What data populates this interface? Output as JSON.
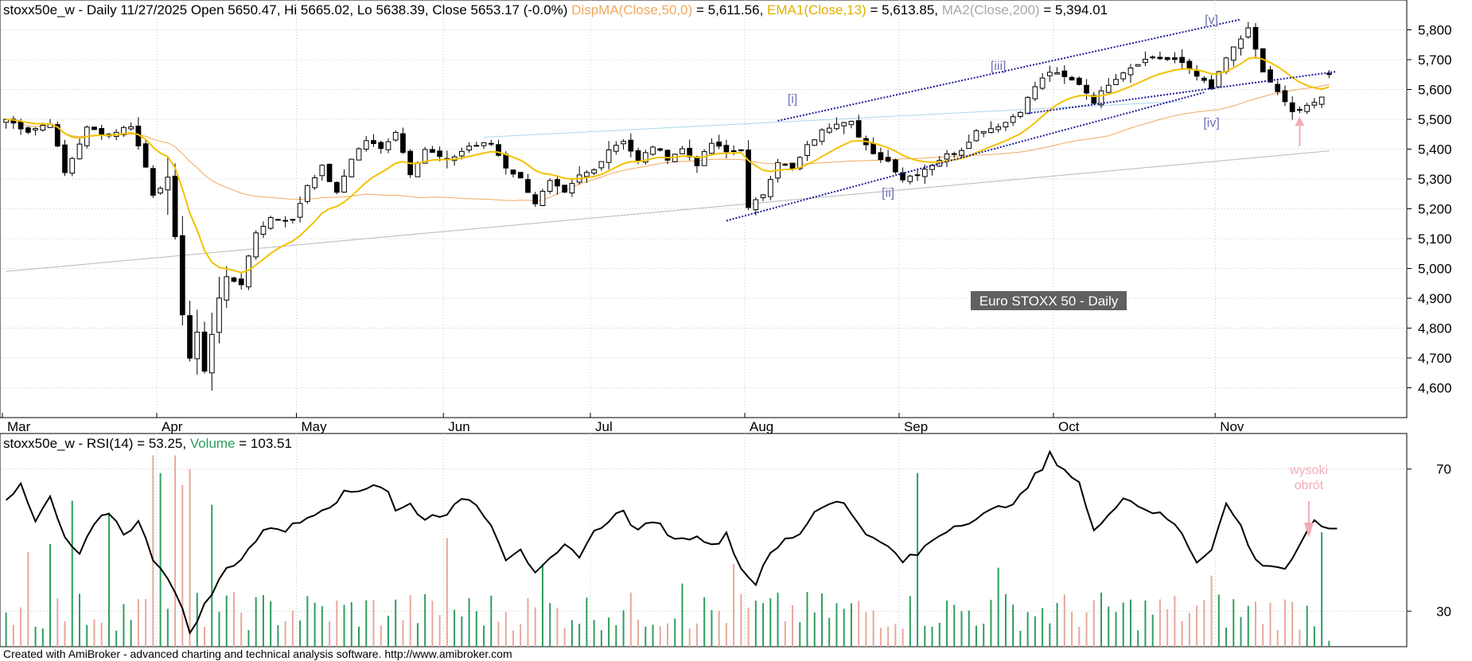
{
  "header": {
    "main_prefix": "stoxx50e_w - Daily 11/27/2025 Open 5650.47, Hi 5665.02, Lo 5638.39, Close 5653.17 (-0.0%)",
    "dispma_label": "DispMA(Close,50,0)",
    "dispma_value": " = 5,611.56,",
    "ema_label": "EMA1(Close,13)",
    "ema_value": " = 5,613.85,",
    "ma200_label": "MA2(Close,200)",
    "ma200_value": " = 5,394.01",
    "rsi_prefix": "stoxx50e_w - RSI(14) = 53.25,",
    "volume_label": "Volume",
    "volume_value": " = 103.51"
  },
  "footer": {
    "credit": "Created with AmiBroker - advanced charting and technical analysis software. http://www.amibroker.com"
  },
  "colors": {
    "dispma": "#f0a860",
    "ema": "#f2c200",
    "ma200": "#b8b8b8",
    "volume_up": "#2e9e5b",
    "volume_down": "#e8a898",
    "channel": "#1a1a9a",
    "wave_label": "#7070b8",
    "annotation": "#f4aab8",
    "rsi": "#000000"
  },
  "chart_data": [
    {
      "type": "candlestick",
      "title": "Euro STOXX 50 - Daily",
      "ylim": [
        4500,
        5900
      ],
      "y_ticks": [
        "5,800",
        "5,700",
        "5,600",
        "5,500",
        "5,400",
        "5,300",
        "5,200",
        "5,100",
        "5,000",
        "4,900",
        "4,800",
        "4,700",
        "4,600"
      ],
      "y_tick_values": [
        5800,
        5700,
        5600,
        5500,
        5400,
        5300,
        5200,
        5100,
        5000,
        4900,
        4800,
        4700,
        4600
      ],
      "months": [
        {
          "label": "Mar",
          "bar": 0
        },
        {
          "label": "Apr",
          "bar": 21
        },
        {
          "label": "May",
          "bar": 40
        },
        {
          "label": "Jun",
          "bar": 60
        },
        {
          "label": "Jul",
          "bar": 80
        },
        {
          "label": "Aug",
          "bar": 101
        },
        {
          "label": "Sep",
          "bar": 122
        },
        {
          "label": "Oct",
          "bar": 143
        },
        {
          "label": "Nov",
          "bar": 165
        }
      ],
      "close_anchors": [
        [
          0,
          5500
        ],
        [
          3,
          5460
        ],
        [
          6,
          5490
        ],
        [
          8,
          5320
        ],
        [
          11,
          5470
        ],
        [
          14,
          5450
        ],
        [
          17,
          5480
        ],
        [
          19,
          5340
        ],
        [
          20,
          5250
        ],
        [
          22,
          5300
        ],
        [
          23,
          5100
        ],
        [
          24,
          4850
        ],
        [
          25,
          4700
        ],
        [
          26,
          4780
        ],
        [
          27,
          4660
        ],
        [
          28,
          4780
        ],
        [
          29,
          4900
        ],
        [
          30,
          4970
        ],
        [
          32,
          4950
        ],
        [
          34,
          5120
        ],
        [
          36,
          5170
        ],
        [
          39,
          5160
        ],
        [
          41,
          5280
        ],
        [
          43,
          5340
        ],
        [
          45,
          5250
        ],
        [
          47,
          5370
        ],
        [
          49,
          5430
        ],
        [
          51,
          5400
        ],
        [
          53,
          5460
        ],
        [
          55,
          5320
        ],
        [
          57,
          5400
        ],
        [
          60,
          5360
        ],
        [
          63,
          5410
        ],
        [
          66,
          5420
        ],
        [
          68,
          5340
        ],
        [
          70,
          5300
        ],
        [
          72,
          5220
        ],
        [
          74,
          5290
        ],
        [
          76,
          5250
        ],
        [
          78,
          5310
        ],
        [
          80,
          5330
        ],
        [
          82,
          5400
        ],
        [
          84,
          5430
        ],
        [
          86,
          5360
        ],
        [
          88,
          5410
        ],
        [
          90,
          5370
        ],
        [
          92,
          5400
        ],
        [
          94,
          5350
        ],
        [
          96,
          5420
        ],
        [
          98,
          5390
        ],
        [
          100,
          5400
        ],
        [
          101,
          5200
        ],
        [
          103,
          5250
        ],
        [
          105,
          5360
        ],
        [
          107,
          5330
        ],
        [
          109,
          5410
        ],
        [
          111,
          5460
        ],
        [
          113,
          5490
        ],
        [
          115,
          5500
        ],
        [
          116,
          5440
        ],
        [
          118,
          5380
        ],
        [
          120,
          5360
        ],
        [
          122,
          5300
        ],
        [
          124,
          5320
        ],
        [
          126,
          5350
        ],
        [
          128,
          5380
        ],
        [
          130,
          5400
        ],
        [
          132,
          5460
        ],
        [
          134,
          5470
        ],
        [
          136,
          5490
        ],
        [
          138,
          5530
        ],
        [
          140,
          5610
        ],
        [
          142,
          5660
        ],
        [
          144,
          5640
        ],
        [
          146,
          5620
        ],
        [
          148,
          5560
        ],
        [
          150,
          5620
        ],
        [
          152,
          5660
        ],
        [
          154,
          5690
        ],
        [
          156,
          5710
        ],
        [
          158,
          5700
        ],
        [
          160,
          5690
        ],
        [
          162,
          5650
        ],
        [
          164,
          5600
        ],
        [
          165,
          5660
        ],
        [
          167,
          5740
        ],
        [
          169,
          5800
        ],
        [
          170,
          5730
        ],
        [
          171,
          5660
        ],
        [
          173,
          5590
        ],
        [
          175,
          5520
        ],
        [
          177,
          5540
        ],
        [
          179,
          5570
        ],
        [
          180,
          5653
        ]
      ],
      "wave_labels": [
        {
          "text": "[i]",
          "bar": 107,
          "price": 5555
        },
        {
          "text": "[ii]",
          "bar": 120,
          "price": 5240
        },
        {
          "text": "[iii]",
          "bar": 135,
          "price": 5665
        },
        {
          "text": "[iv]",
          "bar": 164,
          "price": 5475
        },
        {
          "text": "[v]",
          "bar": 164,
          "price": 5820
        }
      ],
      "channel_lines": [
        {
          "from": [
            98,
            5160
          ],
          "to": [
            163,
            5590
          ]
        },
        {
          "from": [
            105,
            5495
          ],
          "to": [
            168,
            5835
          ]
        },
        {
          "from": [
            139,
            5520
          ],
          "to": [
            181,
            5660
          ]
        }
      ],
      "thin_lines": [
        {
          "from": [
            65,
            5440
          ],
          "to": [
            160,
            5560
          ]
        }
      ]
    },
    {
      "type": "line",
      "series": [
        {
          "name": "RSI(14)",
          "value": 53.25
        },
        {
          "name": "Volume",
          "value": 103.51
        }
      ],
      "ylim": [
        20,
        80
      ],
      "y_ticks": [
        "70",
        "30"
      ],
      "y_tick_values": [
        70,
        30
      ],
      "rsi_anchors": [
        [
          0,
          62
        ],
        [
          2,
          65
        ],
        [
          4,
          55
        ],
        [
          6,
          62
        ],
        [
          8,
          50
        ],
        [
          10,
          46
        ],
        [
          12,
          54
        ],
        [
          14,
          58
        ],
        [
          16,
          52
        ],
        [
          18,
          55
        ],
        [
          20,
          45
        ],
        [
          22,
          40
        ],
        [
          24,
          30
        ],
        [
          25,
          24
        ],
        [
          26,
          28
        ],
        [
          28,
          35
        ],
        [
          30,
          42
        ],
        [
          32,
          45
        ],
        [
          34,
          50
        ],
        [
          36,
          54
        ],
        [
          38,
          53
        ],
        [
          40,
          55
        ],
        [
          42,
          58
        ],
        [
          44,
          60
        ],
        [
          46,
          63
        ],
        [
          48,
          64
        ],
        [
          50,
          66
        ],
        [
          52,
          64
        ],
        [
          53,
          58
        ],
        [
          55,
          60
        ],
        [
          57,
          56
        ],
        [
          60,
          58
        ],
        [
          63,
          62
        ],
        [
          66,
          55
        ],
        [
          68,
          45
        ],
        [
          70,
          48
        ],
        [
          72,
          40
        ],
        [
          74,
          44
        ],
        [
          76,
          48
        ],
        [
          78,
          46
        ],
        [
          80,
          52
        ],
        [
          82,
          56
        ],
        [
          84,
          58
        ],
        [
          86,
          52
        ],
        [
          88,
          56
        ],
        [
          90,
          52
        ],
        [
          92,
          50
        ],
        [
          94,
          52
        ],
        [
          96,
          48
        ],
        [
          98,
          52
        ],
        [
          100,
          42
        ],
        [
          102,
          38
        ],
        [
          104,
          46
        ],
        [
          106,
          50
        ],
        [
          108,
          52
        ],
        [
          110,
          58
        ],
        [
          112,
          61
        ],
        [
          114,
          60
        ],
        [
          116,
          55
        ],
        [
          118,
          50
        ],
        [
          120,
          48
        ],
        [
          122,
          44
        ],
        [
          124,
          46
        ],
        [
          126,
          50
        ],
        [
          128,
          53
        ],
        [
          130,
          55
        ],
        [
          132,
          56
        ],
        [
          134,
          58
        ],
        [
          136,
          60
        ],
        [
          138,
          62
        ],
        [
          140,
          68
        ],
        [
          141,
          70
        ],
        [
          142,
          74
        ],
        [
          144,
          70
        ],
        [
          146,
          66
        ],
        [
          148,
          52
        ],
        [
          150,
          58
        ],
        [
          152,
          62
        ],
        [
          154,
          60
        ],
        [
          156,
          58
        ],
        [
          158,
          56
        ],
        [
          160,
          52
        ],
        [
          162,
          44
        ],
        [
          164,
          48
        ],
        [
          166,
          60
        ],
        [
          168,
          54
        ],
        [
          170,
          44
        ],
        [
          172,
          43
        ],
        [
          174,
          42
        ],
        [
          176,
          48
        ],
        [
          178,
          55
        ],
        [
          180,
          53.25
        ]
      ],
      "annotation": {
        "line1": "wysoki",
        "line2": "obrót"
      }
    }
  ]
}
